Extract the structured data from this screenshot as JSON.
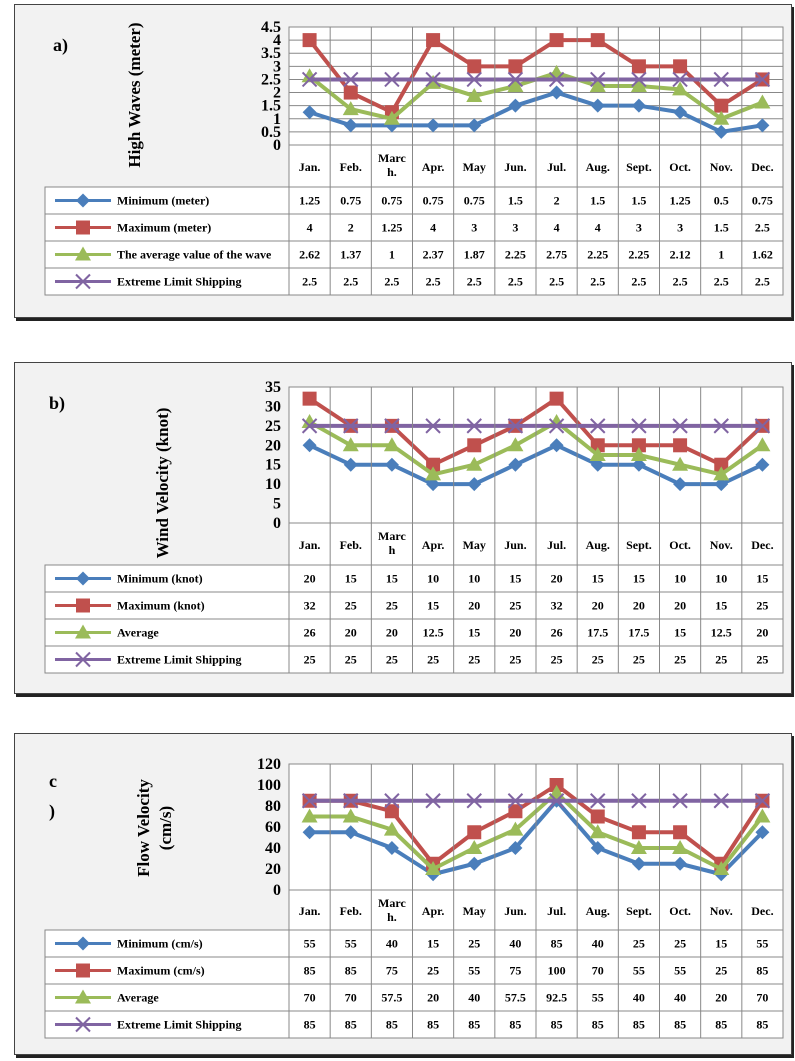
{
  "chart_data": [
    {
      "type": "line",
      "panel_label": "a)",
      "ylabel": "High Waves (meter)",
      "ylim": [
        0,
        4.5
      ],
      "yticks": [
        "0",
        "0.5",
        "1",
        "1.5",
        "2",
        "2.5",
        "3",
        "3.5",
        "4",
        "4.5"
      ],
      "categories": [
        "Jan.",
        "Feb.",
        "Marc h.",
        "Apr.",
        "May",
        "Jun.",
        "Jul.",
        "Aug.",
        "Sept.",
        "Oct.",
        "Nov.",
        "Dec."
      ],
      "series": [
        {
          "name": "Minimum (meter)",
          "color": "#4a7ebb",
          "marker": "diamond",
          "values": [
            1.25,
            0.75,
            0.75,
            0.75,
            0.75,
            1.5,
            2,
            1.5,
            1.5,
            1.25,
            0.5,
            0.75
          ]
        },
        {
          "name": "Maximum (meter)",
          "color": "#c0504d",
          "marker": "square",
          "values": [
            4,
            2,
            1.25,
            4,
            3,
            3,
            4,
            4,
            3,
            3,
            1.5,
            2.5
          ]
        },
        {
          "name": "The average value of the wave",
          "color": "#9bbb59",
          "marker": "triangle",
          "values": [
            2.62,
            1.37,
            1,
            2.37,
            1.87,
            2.25,
            2.75,
            2.25,
            2.25,
            2.12,
            1,
            1.62
          ]
        },
        {
          "name": "Extreme Limit Shipping",
          "color": "#8064a2",
          "marker": "x",
          "values": [
            2.5,
            2.5,
            2.5,
            2.5,
            2.5,
            2.5,
            2.5,
            2.5,
            2.5,
            2.5,
            2.5,
            2.5
          ]
        }
      ],
      "table": [
        [
          "1.25",
          "0.75",
          "0.75",
          "0.75",
          "0.75",
          "1.5",
          "2",
          "1.5",
          "1.5",
          "1.25",
          "0.5",
          "0.75"
        ],
        [
          "4",
          "2",
          "1.25",
          "4",
          "3",
          "3",
          "4",
          "4",
          "3",
          "3",
          "1.5",
          "2.5"
        ],
        [
          "2.62",
          "1.37",
          "1",
          "2.37",
          "1.87",
          "2.25",
          "2.75",
          "2.25",
          "2.25",
          "2.12",
          "1",
          "1.62"
        ],
        [
          "2.5",
          "2.5",
          "2.5",
          "2.5",
          "2.5",
          "2.5",
          "2.5",
          "2.5",
          "2.5",
          "2.5",
          "2.5",
          "2.5"
        ]
      ],
      "grid": true
    },
    {
      "type": "line",
      "panel_label": "b)",
      "ylabel": "Wind Velocity (knot)",
      "ylim": [
        0,
        35
      ],
      "yticks": [
        "0",
        "5",
        "10",
        "15",
        "20",
        "25",
        "30",
        "35"
      ],
      "categories": [
        "Jan.",
        "Feb.",
        "Marc h",
        "Apr.",
        "May",
        "Jun.",
        "Jul.",
        "Aug.",
        "Sept.",
        "Oct.",
        "Nov.",
        "Dec."
      ],
      "series": [
        {
          "name": "Minimum (knot)",
          "color": "#4a7ebb",
          "marker": "diamond",
          "values": [
            20,
            15,
            15,
            10,
            10,
            15,
            20,
            15,
            15,
            10,
            10,
            15
          ]
        },
        {
          "name": "Maximum (knot)",
          "color": "#c0504d",
          "marker": "square",
          "values": [
            32,
            25,
            25,
            15,
            20,
            25,
            32,
            20,
            20,
            20,
            15,
            25
          ]
        },
        {
          "name": "Average",
          "color": "#9bbb59",
          "marker": "triangle",
          "values": [
            26,
            20,
            20,
            12.5,
            15,
            20,
            26,
            17.5,
            17.5,
            15,
            12.5,
            20
          ]
        },
        {
          "name": "Extreme Limit Shipping",
          "color": "#8064a2",
          "marker": "x",
          "values": [
            25,
            25,
            25,
            25,
            25,
            25,
            25,
            25,
            25,
            25,
            25,
            25
          ]
        }
      ],
      "table": [
        [
          "20",
          "15",
          "15",
          "10",
          "10",
          "15",
          "20",
          "15",
          "15",
          "10",
          "10",
          "15"
        ],
        [
          "32",
          "25",
          "25",
          "15",
          "20",
          "25",
          "32",
          "20",
          "20",
          "20",
          "15",
          "25"
        ],
        [
          "26",
          "20",
          "20",
          "12.5",
          "15",
          "20",
          "26",
          "17.5",
          "17.5",
          "15",
          "12.5",
          "20"
        ],
        [
          "25",
          "25",
          "25",
          "25",
          "25",
          "25",
          "25",
          "25",
          "25",
          "25",
          "25",
          "25"
        ]
      ],
      "grid": false
    },
    {
      "type": "line",
      "panel_label": "c )",
      "ylabel": "Flow Velocity (cm/s)",
      "ylim": [
        0,
        120
      ],
      "yticks": [
        "0",
        "20",
        "40",
        "60",
        "80",
        "100",
        "120"
      ],
      "categories": [
        "Jan.",
        "Feb.",
        "Marc h.",
        "Apr.",
        "May",
        "Jun.",
        "Jul.",
        "Aug.",
        "Sept.",
        "Oct.",
        "Nov.",
        "Dec."
      ],
      "series": [
        {
          "name": "Minimum (cm/s)",
          "color": "#4a7ebb",
          "marker": "diamond",
          "values": [
            55,
            55,
            40,
            15,
            25,
            40,
            85,
            40,
            25,
            25,
            15,
            55
          ]
        },
        {
          "name": "Maximum (cm/s)",
          "color": "#c0504d",
          "marker": "square",
          "values": [
            85,
            85,
            75,
            25,
            55,
            75,
            100,
            70,
            55,
            55,
            25,
            85
          ]
        },
        {
          "name": "Average",
          "color": "#9bbb59",
          "marker": "triangle",
          "values": [
            70,
            70,
            57.5,
            20,
            40,
            57.5,
            92.5,
            55,
            40,
            40,
            20,
            70
          ]
        },
        {
          "name": "Extreme Limit Shipping",
          "color": "#8064a2",
          "marker": "x",
          "values": [
            85,
            85,
            85,
            85,
            85,
            85,
            85,
            85,
            85,
            85,
            85,
            85
          ]
        }
      ],
      "table": [
        [
          "55",
          "55",
          "40",
          "15",
          "25",
          "40",
          "85",
          "40",
          "25",
          "25",
          "15",
          "55"
        ],
        [
          "85",
          "85",
          "75",
          "25",
          "55",
          "75",
          "100",
          "70",
          "55",
          "55",
          "25",
          "85"
        ],
        [
          "70",
          "70",
          "57.5",
          "20",
          "40",
          "57.5",
          "92.5",
          "55",
          "40",
          "40",
          "20",
          "70"
        ],
        [
          "85",
          "85",
          "85",
          "85",
          "85",
          "85",
          "85",
          "85",
          "85",
          "85",
          "85",
          "85"
        ]
      ],
      "grid": false
    }
  ]
}
